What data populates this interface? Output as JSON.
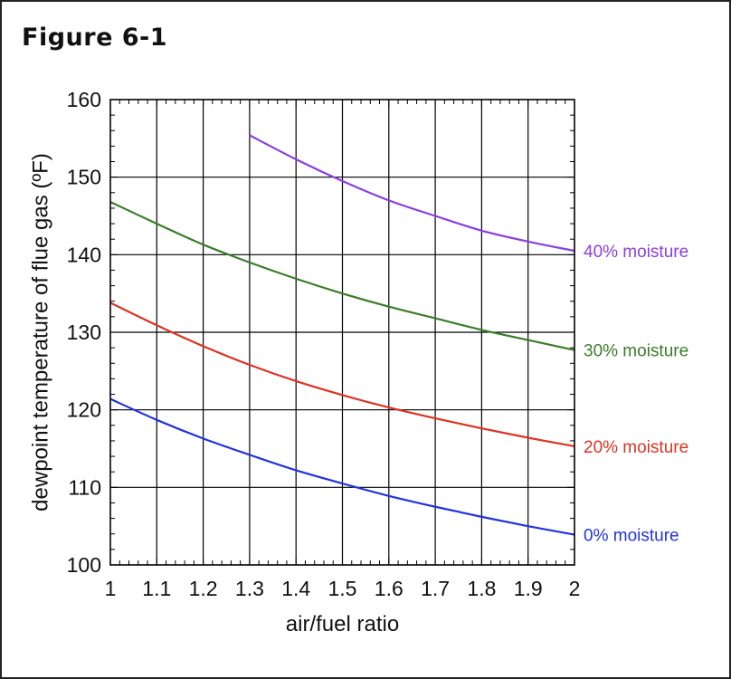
{
  "figure_label": "Figure 6-1",
  "chart_data": {
    "type": "line",
    "title": "Figure 6-1",
    "xlabel": "air/fuel ratio",
    "ylabel": "dewpoint temperature of flue gas (ºF)",
    "xlim": [
      1,
      2
    ],
    "ylim": [
      100,
      160
    ],
    "xticks": [
      1,
      1.1,
      1.2,
      1.3,
      1.4,
      1.5,
      1.6,
      1.7,
      1.8,
      1.9,
      2
    ],
    "xtick_labels": [
      "1",
      "1.1",
      "1.2",
      "1.3",
      "1.4",
      "1.5",
      "1.6",
      "1.7",
      "1.8",
      "1.9",
      "2"
    ],
    "yticks": [
      100,
      110,
      120,
      130,
      140,
      150,
      160
    ],
    "ytick_labels": [
      "100",
      "110",
      "120",
      "130",
      "140",
      "150",
      "160"
    ],
    "grid": true,
    "series": [
      {
        "name": "0% moisture",
        "color": "#2233dd",
        "x": [
          1.0,
          1.1,
          1.2,
          1.3,
          1.4,
          1.5,
          1.6,
          1.7,
          1.8,
          1.9,
          2.0
        ],
        "y": [
          121.4,
          118.7,
          116.3,
          114.2,
          112.2,
          110.5,
          108.9,
          107.5,
          106.2,
          105.0,
          103.9
        ]
      },
      {
        "name": "20% moisture",
        "color": "#dd3322",
        "x": [
          1.0,
          1.1,
          1.2,
          1.3,
          1.4,
          1.5,
          1.6,
          1.7,
          1.8,
          1.9,
          2.0
        ],
        "y": [
          133.8,
          130.9,
          128.2,
          125.8,
          123.7,
          121.9,
          120.3,
          118.9,
          117.6,
          116.4,
          115.3
        ]
      },
      {
        "name": "30% moisture",
        "color": "#3a7d2a",
        "x": [
          1.0,
          1.1,
          1.2,
          1.3,
          1.4,
          1.5,
          1.6,
          1.7,
          1.8,
          1.9,
          2.0
        ],
        "y": [
          146.8,
          144.0,
          141.3,
          139.0,
          136.9,
          135.0,
          133.3,
          131.8,
          130.3,
          129.0,
          127.7
        ]
      },
      {
        "name": "40% moisture",
        "color": "#8a3fdd",
        "x": [
          1.3,
          1.4,
          1.5,
          1.6,
          1.7,
          1.8,
          1.9,
          2.0
        ],
        "y": [
          155.4,
          152.3,
          149.5,
          147.0,
          145.0,
          143.1,
          141.7,
          140.5
        ]
      }
    ]
  }
}
